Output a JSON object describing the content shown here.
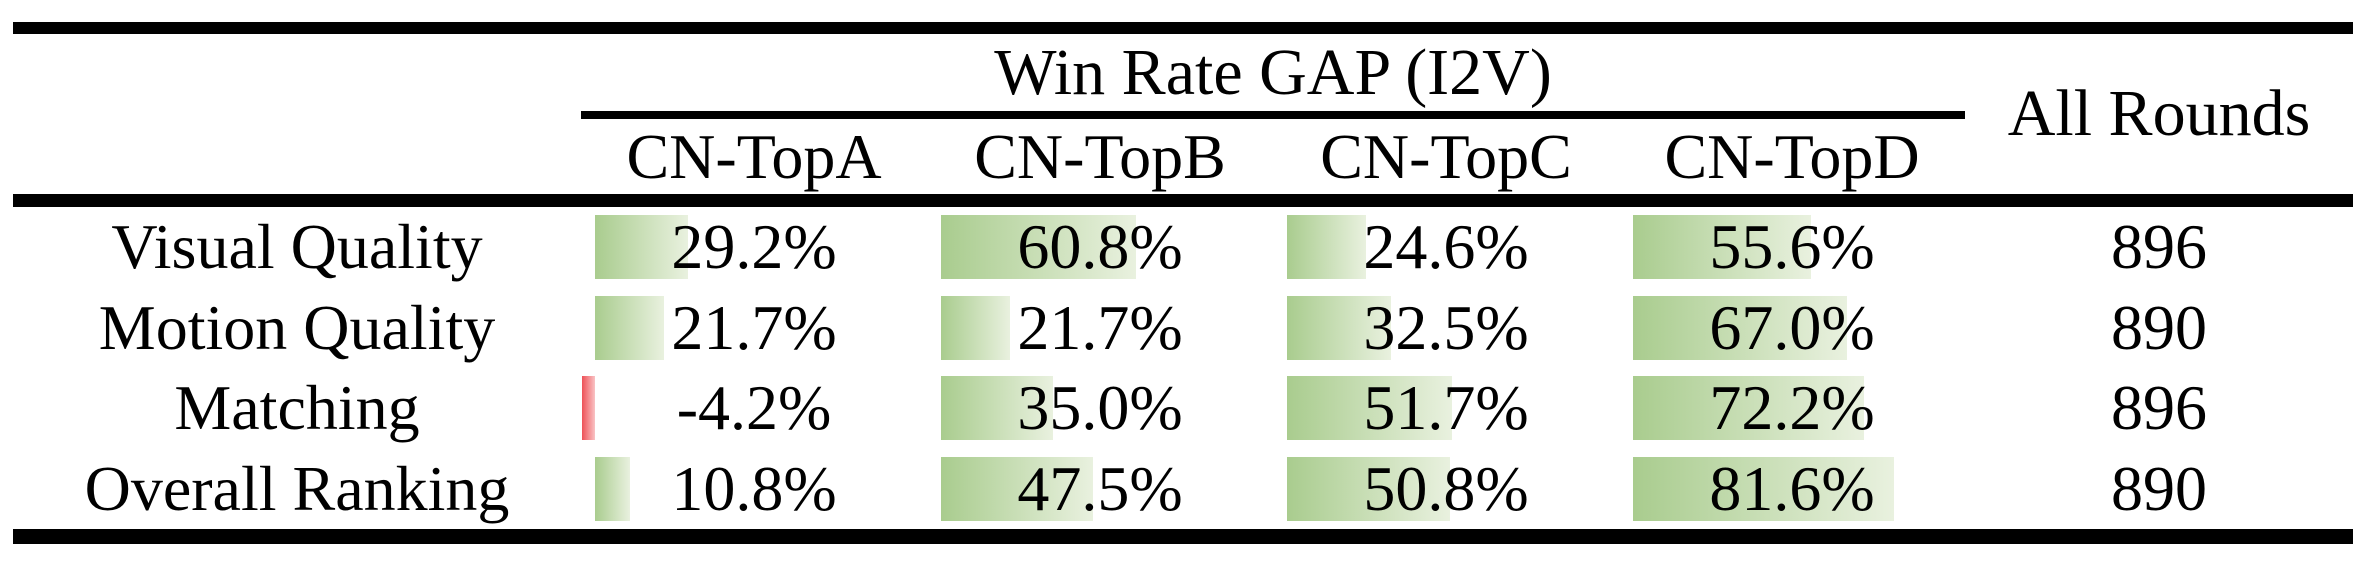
{
  "table": {
    "title": "Win Rate GAP (I2V)",
    "all_rounds_header": "All Rounds",
    "columns": [
      "CN-TopA",
      "CN-TopB",
      "CN-TopC",
      "CN-TopD"
    ],
    "rows": [
      {
        "label": "Visual Quality",
        "values": [
          "29.2%",
          "60.8%",
          "24.6%",
          "55.6%"
        ],
        "all_rounds": "896"
      },
      {
        "label": "Motion Quality",
        "values": [
          "21.7%",
          "21.7%",
          "32.5%",
          "67.0%"
        ],
        "all_rounds": "890"
      },
      {
        "label": "Matching",
        "values": [
          "-4.2%",
          "35.0%",
          "51.7%",
          "72.2%"
        ],
        "all_rounds": "896"
      },
      {
        "label": "Overall Ranking",
        "values": [
          "10.8%",
          "47.5%",
          "50.8%",
          "81.6%"
        ],
        "all_rounds": "890"
      }
    ]
  },
  "chart_data": {
    "type": "table",
    "title": "Win Rate GAP (I2V)",
    "categories": [
      "Visual Quality",
      "Motion Quality",
      "Matching",
      "Overall Ranking"
    ],
    "series": [
      {
        "name": "CN-TopA",
        "values": [
          29.2,
          21.7,
          -4.2,
          10.8
        ]
      },
      {
        "name": "CN-TopB",
        "values": [
          60.8,
          21.7,
          35.0,
          47.5
        ]
      },
      {
        "name": "CN-TopC",
        "values": [
          24.6,
          32.5,
          51.7,
          50.8
        ]
      },
      {
        "name": "CN-TopD",
        "values": [
          55.6,
          67.0,
          72.2,
          81.6
        ]
      }
    ],
    "all_rounds_column": {
      "name": "All Rounds",
      "values": [
        896,
        890,
        896,
        890
      ]
    },
    "unit": "%",
    "bar_style": "in-cell gradient data bars, positive green, negative red, left-anchored, width proportional to value"
  },
  "colors": {
    "bar_positive_start": "#a9cc8e",
    "bar_positive_end": "#e9f1df",
    "bar_negative_start": "#ee5157",
    "bar_negative_end": "#f9c3c5",
    "rule": "#000000",
    "background": "#ffffff",
    "text": "#000000"
  }
}
